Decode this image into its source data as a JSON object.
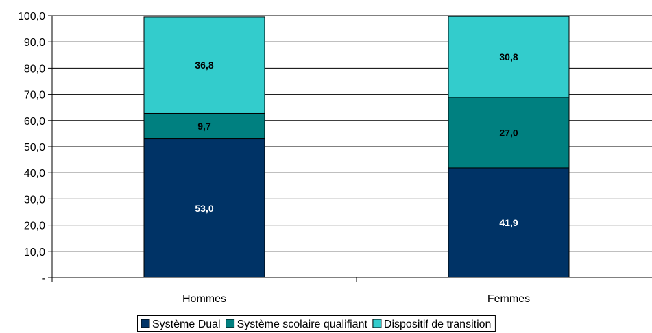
{
  "chart_data": {
    "type": "bar",
    "stacked": true,
    "categories": [
      "Hommes",
      "Femmes"
    ],
    "series": [
      {
        "name": "Système Dual",
        "values": [
          53.0,
          41.9
        ],
        "labels": [
          "53,0",
          "41,9"
        ],
        "color": "#003366",
        "label_color": "#ffffff"
      },
      {
        "name": "Système scolaire qualifiant",
        "values": [
          9.7,
          27.0
        ],
        "labels": [
          "9,7",
          "27,0"
        ],
        "color": "#008080",
        "label_color": "#000000"
      },
      {
        "name": "Dispositif de transition",
        "values": [
          36.8,
          30.8
        ],
        "labels": [
          "36,8",
          "30,8"
        ],
        "color": "#33CCCC",
        "label_color": "#000000"
      }
    ],
    "ylim": [
      0,
      100
    ],
    "yticks": [
      0,
      10,
      20,
      30,
      40,
      50,
      60,
      70,
      80,
      90,
      100
    ],
    "ytick_labels": [
      "-",
      "10,0",
      "20,0",
      "30,0",
      "40,0",
      "50,0",
      "60,0",
      "70,0",
      "80,0",
      "90,0",
      "100,0"
    ],
    "grid": true,
    "legend_position": "bottom"
  }
}
